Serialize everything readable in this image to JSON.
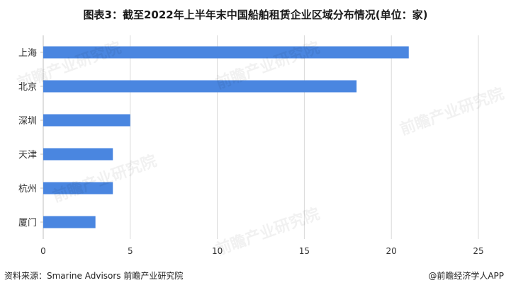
{
  "title": "图表3：截至2022年上半年末中国船舶租赁企业区域分布情况(单位：家)",
  "source": "资料来源：Smarine Advisors 前瞻产业研究院",
  "credit": "@前瞻经济学人APP",
  "watermark": "前瞻产业研究院",
  "colors": {
    "bar": "#4a86e0",
    "grid": "#d9d9d9",
    "axis": "#bfbfbf",
    "text": "#333333"
  },
  "chart_data": {
    "type": "bar",
    "orientation": "horizontal",
    "categories": [
      "上海",
      "北京",
      "深圳",
      "天津",
      "杭州",
      "厦门"
    ],
    "values": [
      21,
      18,
      5,
      4,
      4,
      3
    ],
    "xlim": [
      0,
      25
    ],
    "xticks": [
      0,
      5,
      10,
      15,
      20,
      25
    ],
    "grid": "vertical"
  }
}
